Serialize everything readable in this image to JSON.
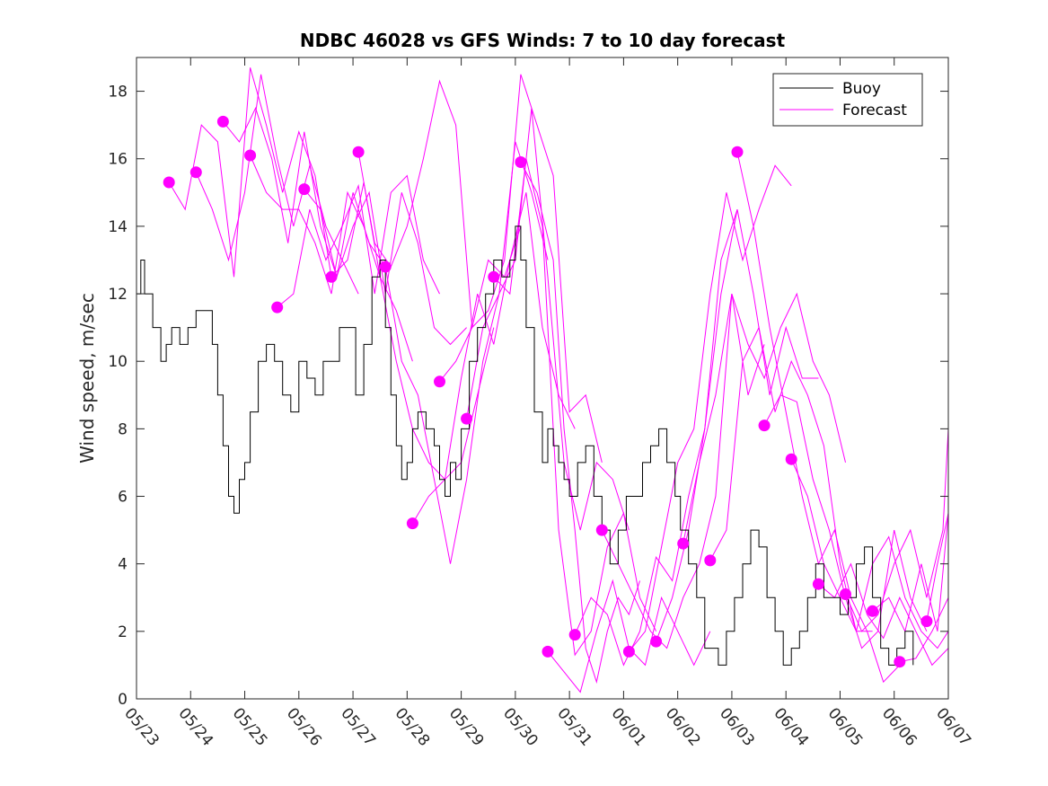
{
  "chart_data": {
    "type": "line",
    "title": "NDBC 46028 vs GFS Winds: 7 to 10 day forecast",
    "xlabel": "",
    "ylabel": "Wind speed, m/sec",
    "x_tick_labels": [
      "05/23",
      "05/24",
      "05/25",
      "05/26",
      "05/27",
      "05/28",
      "05/29",
      "05/30",
      "05/31",
      "06/01",
      "06/02",
      "06/03",
      "06/04",
      "06/05",
      "06/06",
      "06/07"
    ],
    "xlim": [
      0,
      15
    ],
    "ylim": [
      0,
      19
    ],
    "y_ticks": [
      0,
      2,
      4,
      6,
      8,
      10,
      12,
      14,
      16,
      18
    ],
    "grid": false,
    "legend": {
      "placement": "top-right",
      "entries": [
        "Buoy",
        "Forecast"
      ]
    },
    "colors": {
      "buoy": "#000000",
      "forecast": "#ff00ff"
    },
    "buoy": {
      "name": "Buoy",
      "x": [
        0.0,
        0.08,
        0.15,
        0.3,
        0.45,
        0.55,
        0.65,
        0.8,
        0.95,
        1.1,
        1.25,
        1.4,
        1.5,
        1.6,
        1.7,
        1.8,
        1.9,
        2.0,
        2.1,
        2.25,
        2.4,
        2.55,
        2.7,
        2.85,
        3.0,
        3.15,
        3.3,
        3.45,
        3.6,
        3.75,
        3.9,
        4.05,
        4.2,
        4.35,
        4.5,
        4.6,
        4.7,
        4.8,
        4.9,
        5.0,
        5.1,
        5.2,
        5.35,
        5.5,
        5.6,
        5.7,
        5.8,
        5.9,
        6.0,
        6.15,
        6.3,
        6.45,
        6.6,
        6.75,
        6.9,
        7.0,
        7.1,
        7.2,
        7.35,
        7.5,
        7.6,
        7.7,
        7.8,
        7.9,
        8.0,
        8.15,
        8.3,
        8.45,
        8.6,
        8.75,
        8.9,
        9.05,
        9.2,
        9.35,
        9.5,
        9.65,
        9.8,
        9.95,
        10.05,
        10.2,
        10.35,
        10.5,
        10.6,
        10.75,
        10.9,
        11.05,
        11.2,
        11.35,
        11.5,
        11.65,
        11.8,
        11.95,
        12.1,
        12.25,
        12.4,
        12.55,
        12.7,
        12.85,
        13.0,
        13.15,
        13.3,
        13.45,
        13.6,
        13.75,
        13.9,
        14.05,
        14.2,
        14.35
      ],
      "y": [
        12,
        13,
        12,
        11,
        10,
        10.5,
        11,
        10.5,
        11,
        11.5,
        11.5,
        10.5,
        9,
        7.5,
        6,
        5.5,
        6.5,
        7,
        8.5,
        10,
        10.5,
        10,
        9,
        8.5,
        10,
        9.5,
        9,
        10,
        10,
        11,
        11,
        9,
        10.5,
        12.5,
        13,
        11,
        9,
        7.5,
        6.5,
        7,
        8,
        8.5,
        8,
        7.5,
        6.5,
        6,
        7,
        6.5,
        8,
        10,
        11,
        12,
        13,
        12.5,
        13,
        14,
        13,
        11,
        8.5,
        7,
        8,
        7.5,
        7,
        6.5,
        6,
        7,
        7.5,
        6,
        5,
        4,
        5,
        6,
        6,
        7,
        7.5,
        8,
        7,
        6,
        5,
        4,
        3,
        1.5,
        1.5,
        1,
        2,
        3,
        4,
        5,
        4.5,
        3,
        2,
        1,
        1.5,
        2,
        3,
        4,
        3,
        3,
        2.5,
        3,
        4,
        4.5,
        3,
        1.5,
        1,
        1.5,
        2,
        1
      ]
    },
    "forecast_markers": {
      "x": [
        0.6,
        1.1,
        1.6,
        2.1,
        2.6,
        3.1,
        3.6,
        4.1,
        4.6,
        5.1,
        5.6,
        6.1,
        6.6,
        7.1,
        7.6,
        8.1,
        8.6,
        9.1,
        9.6,
        10.1,
        10.6,
        11.1,
        11.6,
        12.1,
        12.6,
        13.1,
        13.6,
        14.1,
        14.6
      ],
      "y": [
        15.3,
        15.6,
        17.1,
        16.1,
        11.6,
        15.1,
        12.5,
        16.2,
        12.8,
        5.2,
        9.4,
        8.3,
        12.5,
        15.9,
        1.4,
        1.9,
        5.0,
        1.4,
        1.7,
        4.6,
        4.1,
        16.2,
        8.1,
        7.1,
        3.4,
        3.1,
        2.6,
        1.1,
        2.3
      ]
    },
    "forecast_runs": [
      {
        "x": [
          0.6,
          0.9,
          1.2,
          1.5,
          1.8,
          2.1,
          2.4,
          2.7,
          3.0,
          3.3,
          3.6
        ],
        "y": [
          15.3,
          14.5,
          17,
          16.5,
          12.5,
          18.7,
          17,
          15,
          16.8,
          15.5,
          12.5
        ]
      },
      {
        "x": [
          1.1,
          1.4,
          1.7,
          2.0,
          2.3,
          2.6,
          2.9,
          3.2,
          3.5,
          3.8,
          4.1
        ],
        "y": [
          15.6,
          14.5,
          13,
          15,
          18.5,
          16,
          14,
          15.8,
          14,
          13,
          12
        ]
      },
      {
        "x": [
          1.6,
          1.9,
          2.2,
          2.5,
          2.8,
          3.1,
          3.4,
          3.7,
          4.0,
          4.3,
          4.6
        ],
        "y": [
          17.1,
          16.5,
          17.5,
          16,
          13.5,
          16.8,
          14,
          12.5,
          15,
          13.5,
          12.8
        ]
      },
      {
        "x": [
          2.1,
          2.4,
          2.7,
          3.0,
          3.3,
          3.6,
          3.9,
          4.2,
          4.5,
          4.8,
          5.1
        ],
        "y": [
          16.1,
          15,
          14.5,
          14.5,
          13.5,
          12,
          15,
          14,
          12.5,
          11.5,
          10
        ]
      },
      {
        "x": [
          2.6,
          2.9,
          3.2,
          3.5,
          3.8,
          4.1,
          4.4,
          4.7,
          5.0,
          5.3,
          5.6
        ],
        "y": [
          11.6,
          12,
          14.5,
          13,
          14,
          15.2,
          12,
          15,
          15.5,
          13,
          12
        ]
      },
      {
        "x": [
          3.1,
          3.4,
          3.7,
          4.0,
          4.3,
          4.6,
          4.9,
          5.2,
          5.5,
          5.8,
          6.1
        ],
        "y": [
          15.1,
          14.5,
          12.5,
          14,
          15,
          12,
          15,
          13.5,
          11,
          10.5,
          11
        ]
      },
      {
        "x": [
          3.6,
          3.9,
          4.2,
          4.5,
          4.8,
          5.1,
          5.4,
          5.7,
          6.0,
          6.3,
          6.6
        ],
        "y": [
          12.5,
          13,
          15.3,
          12.5,
          10,
          8,
          7,
          6.5,
          7,
          9,
          11
        ]
      },
      {
        "x": [
          4.1,
          4.4,
          4.7,
          5.0,
          5.3,
          5.6,
          5.9,
          6.2,
          6.5,
          6.8,
          7.1
        ],
        "y": [
          16.2,
          13.5,
          12.8,
          14,
          16,
          18.3,
          17,
          11,
          13,
          12.5,
          14
        ]
      },
      {
        "x": [
          4.6,
          4.9,
          5.2,
          5.5,
          5.8,
          6.1,
          6.4,
          6.7,
          7.0,
          7.3,
          7.6
        ],
        "y": [
          12.8,
          10,
          9,
          6.5,
          4,
          6.5,
          10,
          12,
          16.5,
          15,
          13
        ]
      },
      {
        "x": [
          5.1,
          5.4,
          5.7,
          6.0,
          6.3,
          6.6,
          6.9,
          7.2,
          7.5,
          7.8,
          8.1
        ],
        "y": [
          5.2,
          6,
          6.5,
          9.5,
          12,
          10.5,
          13,
          15,
          11,
          9,
          8
        ]
      },
      {
        "x": [
          5.6,
          5.9,
          6.2,
          6.5,
          6.8,
          7.1,
          7.4,
          7.7,
          8.0,
          8.3,
          8.6
        ],
        "y": [
          9.4,
          10,
          11,
          11.5,
          13,
          18.5,
          17,
          15.5,
          8.5,
          9,
          7
        ]
      },
      {
        "x": [
          6.1,
          6.4,
          6.7,
          7.0,
          7.3,
          7.6,
          7.9,
          8.2,
          8.5,
          8.8,
          9.1
        ],
        "y": [
          8.3,
          11,
          12,
          13,
          17.5,
          12.5,
          7,
          5,
          7,
          6.5,
          5
        ]
      },
      {
        "x": [
          6.6,
          6.9,
          7.2,
          7.5,
          7.8,
          8.1,
          8.4,
          8.7,
          9.0,
          9.3,
          9.6
        ],
        "y": [
          12.5,
          12,
          16,
          14,
          5,
          1.3,
          2,
          4.5,
          5.5,
          3,
          2
        ]
      },
      {
        "x": [
          7.1,
          7.4,
          7.7,
          7.9,
          8.1,
          8.3,
          8.5,
          8.7,
          8.9,
          9.1,
          9.3
        ],
        "y": [
          15.9,
          15,
          13,
          8,
          5,
          1.5,
          0.5,
          2,
          3,
          2.5,
          3.5
        ]
      },
      {
        "x": [
          7.6,
          7.9,
          8.2,
          8.5,
          8.8,
          9.1,
          9.4,
          9.7,
          10.0,
          10.3,
          10.6
        ],
        "y": [
          1.4,
          0.8,
          0.2,
          2,
          3.5,
          1.5,
          1,
          3,
          2,
          1,
          2
        ]
      },
      {
        "x": [
          8.1,
          8.4,
          8.7,
          9.0,
          9.3,
          9.6,
          9.9,
          10.2,
          10.5,
          10.8,
          11.1
        ],
        "y": [
          1.9,
          3,
          2.5,
          1,
          2,
          4.2,
          3.5,
          6,
          8,
          12,
          14.5
        ]
      },
      {
        "x": [
          8.6,
          8.9,
          9.2,
          9.5,
          9.8,
          10.1,
          10.4,
          10.7,
          11.0,
          11.3,
          11.6
        ],
        "y": [
          5.0,
          4,
          3,
          2,
          1.5,
          3,
          4,
          6,
          12,
          9,
          10.5
        ]
      },
      {
        "x": [
          9.1,
          9.4,
          9.7,
          10.0,
          10.3,
          10.6,
          10.9,
          11.2,
          11.5,
          11.8,
          12.1
        ],
        "y": [
          1.4,
          2,
          4.5,
          7,
          8,
          12,
          15,
          13,
          14.5,
          15.8,
          15.2
        ]
      },
      {
        "x": [
          9.6,
          9.9,
          10.2,
          10.5,
          10.8,
          11.1,
          11.4,
          11.7,
          12.0,
          12.3,
          12.6
        ],
        "y": [
          1.7,
          3,
          5,
          8,
          13,
          14.5,
          12,
          9,
          11,
          9.5,
          9.5
        ]
      },
      {
        "x": [
          10.1,
          10.4,
          10.7,
          11.0,
          11.3,
          11.6,
          11.9,
          12.2,
          12.5,
          12.8,
          13.1
        ],
        "y": [
          4.6,
          7,
          9,
          12,
          10.5,
          9.5,
          11,
          12,
          10,
          9,
          7
        ]
      },
      {
        "x": [
          10.6,
          10.9,
          11.2,
          11.5,
          11.8,
          12.1,
          12.4,
          12.7,
          13.0,
          13.3,
          13.6
        ],
        "y": [
          4.1,
          5,
          10,
          11,
          8.5,
          10,
          9,
          7.5,
          4,
          2,
          2
        ]
      },
      {
        "x": [
          11.1,
          11.4,
          11.7,
          12.0,
          12.3,
          12.6,
          12.9,
          13.2,
          13.5,
          13.8,
          14.1
        ],
        "y": [
          16.2,
          14,
          11,
          8.5,
          6,
          4,
          5,
          3,
          2,
          0.5,
          1
        ]
      },
      {
        "x": [
          11.6,
          11.9,
          12.2,
          12.5,
          12.8,
          13.1,
          13.4,
          13.7,
          14.0,
          14.3,
          14.6
        ],
        "y": [
          8.1,
          9,
          8.8,
          6.5,
          5,
          3,
          1.5,
          2,
          5,
          3,
          2
        ]
      },
      {
        "x": [
          12.1,
          12.4,
          12.7,
          13.0,
          13.3,
          13.6,
          13.9,
          14.2,
          14.5,
          14.8,
          15.0
        ],
        "y": [
          7.1,
          6,
          4,
          3,
          2,
          4,
          4.8,
          3,
          2,
          1.5,
          2
        ]
      },
      {
        "x": [
          12.6,
          12.9,
          13.2,
          13.5,
          13.8,
          14.1,
          14.4,
          14.7,
          15.0
        ],
        "y": [
          3.4,
          3,
          4,
          2.5,
          1.8,
          3,
          2,
          1,
          1.5
        ]
      },
      {
        "x": [
          13.1,
          13.4,
          13.7,
          14.0,
          14.3,
          14.6,
          14.9,
          15.0
        ],
        "y": [
          3.1,
          2,
          2.5,
          4,
          5,
          3,
          5,
          8
        ]
      },
      {
        "x": [
          13.6,
          13.9,
          14.2,
          14.5,
          14.8,
          15.0
        ],
        "y": [
          2.6,
          3,
          2,
          4,
          2,
          5.5
        ]
      },
      {
        "x": [
          14.1,
          14.4,
          14.7,
          15.0
        ],
        "y": [
          1.1,
          1.2,
          2,
          3
        ]
      },
      {
        "x": [
          14.6,
          14.8,
          15.0
        ],
        "y": [
          2.3,
          4,
          5.5
        ]
      }
    ]
  }
}
